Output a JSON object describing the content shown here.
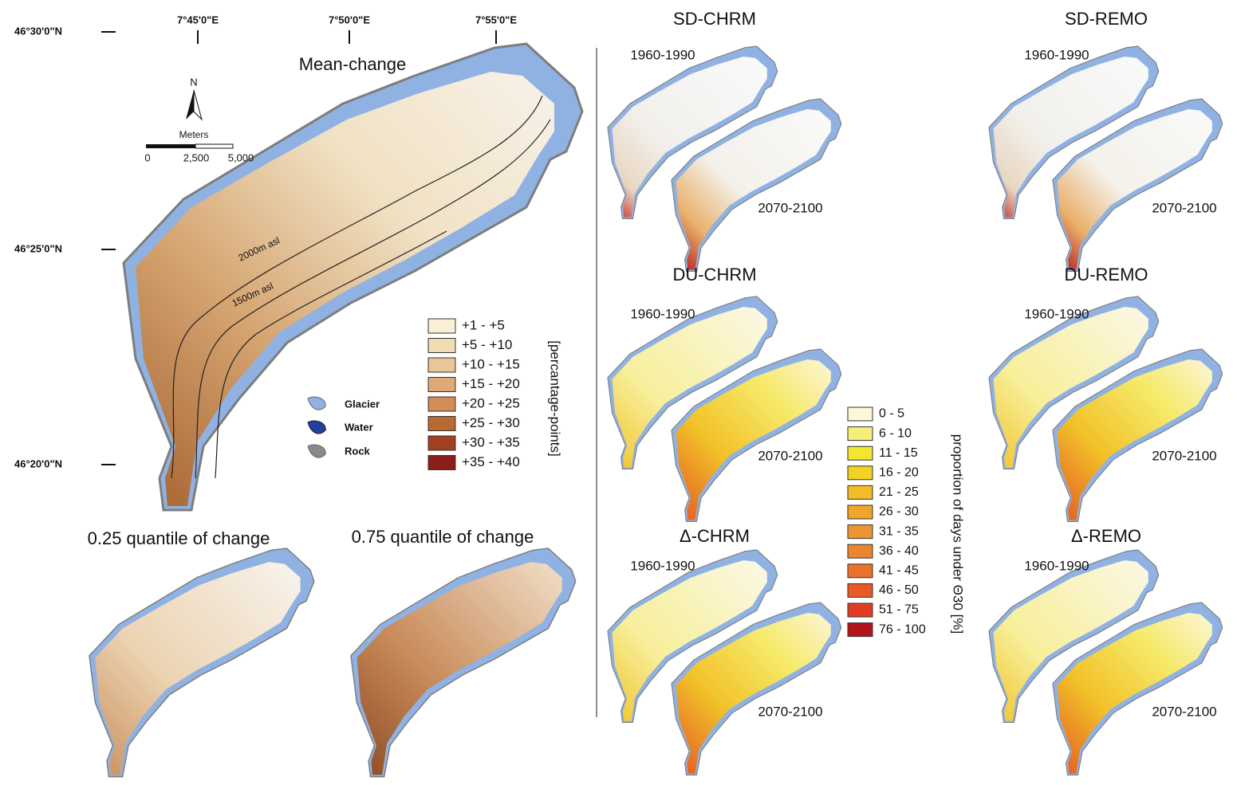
{
  "map": {
    "lat_labels": [
      "46°30'0\"N",
      "46°25'0\"N",
      "46°20'0\"N"
    ],
    "lon_labels": [
      "7°45'0\"E",
      "7°50'0\"E",
      "7°55'0\"E"
    ],
    "title": "Mean-change",
    "north": "N",
    "scale_bar": {
      "unit": "Meters",
      "labels": [
        "0",
        "2,500",
        "5,000"
      ]
    },
    "contours": [
      "2000m asl",
      "1500m asl"
    ],
    "land_cover": [
      "Glacier",
      "Water",
      "Rock"
    ]
  },
  "change_legend": {
    "title": "[percantage-points]",
    "entries": [
      "+1 -  +5",
      "+5 - +10",
      "+10 - +15",
      "+15 - +20",
      "+20 - +25",
      "+25 - +30",
      "+30 - +35",
      "+35 - +40"
    ],
    "colors": [
      "#f8efd4",
      "#f2dcb5",
      "#e9c697",
      "#dfa977",
      "#d28c55",
      "#b96a34",
      "#a2401f",
      "#8c1e1a"
    ]
  },
  "quantile_maps": [
    "0.25 quantile of change",
    "0.75 quantile of change"
  ],
  "panels": [
    {
      "title": "SD-CHRM",
      "periods": [
        "1960-1990",
        "2070-2100"
      ]
    },
    {
      "title": "SD-REMO",
      "periods": [
        "1960-1990",
        "2070-2100"
      ]
    },
    {
      "title": "DU-CHRM",
      "periods": [
        "1960-1990",
        "2070-2100"
      ]
    },
    {
      "title": "DU-REMO",
      "periods": [
        "1960-1990",
        "2070-2100"
      ]
    },
    {
      "title": "Δ-CHRM",
      "periods": [
        "1960-1990",
        "2070-2100"
      ]
    },
    {
      "title": "Δ-REMO",
      "periods": [
        "1960-1990",
        "2070-2100"
      ]
    }
  ],
  "proportion_legend": {
    "title": "proportion of days under Θ30 [%]",
    "entries": [
      "0 - 5",
      "6 - 10",
      "11 - 15",
      "16 - 20",
      "21 - 25",
      "26 - 30",
      "31 - 35",
      "36 - 40",
      "41 - 45",
      "46 - 50",
      "51 - 75",
      "76 - 100"
    ],
    "colors": [
      "#fbf7d7",
      "#f6ee78",
      "#f4e531",
      "#f4d125",
      "#f2bb28",
      "#f0a62b",
      "#ee9430",
      "#ec8530",
      "#e9712c",
      "#e55a27",
      "#e03d25",
      "#b0141c"
    ]
  }
}
